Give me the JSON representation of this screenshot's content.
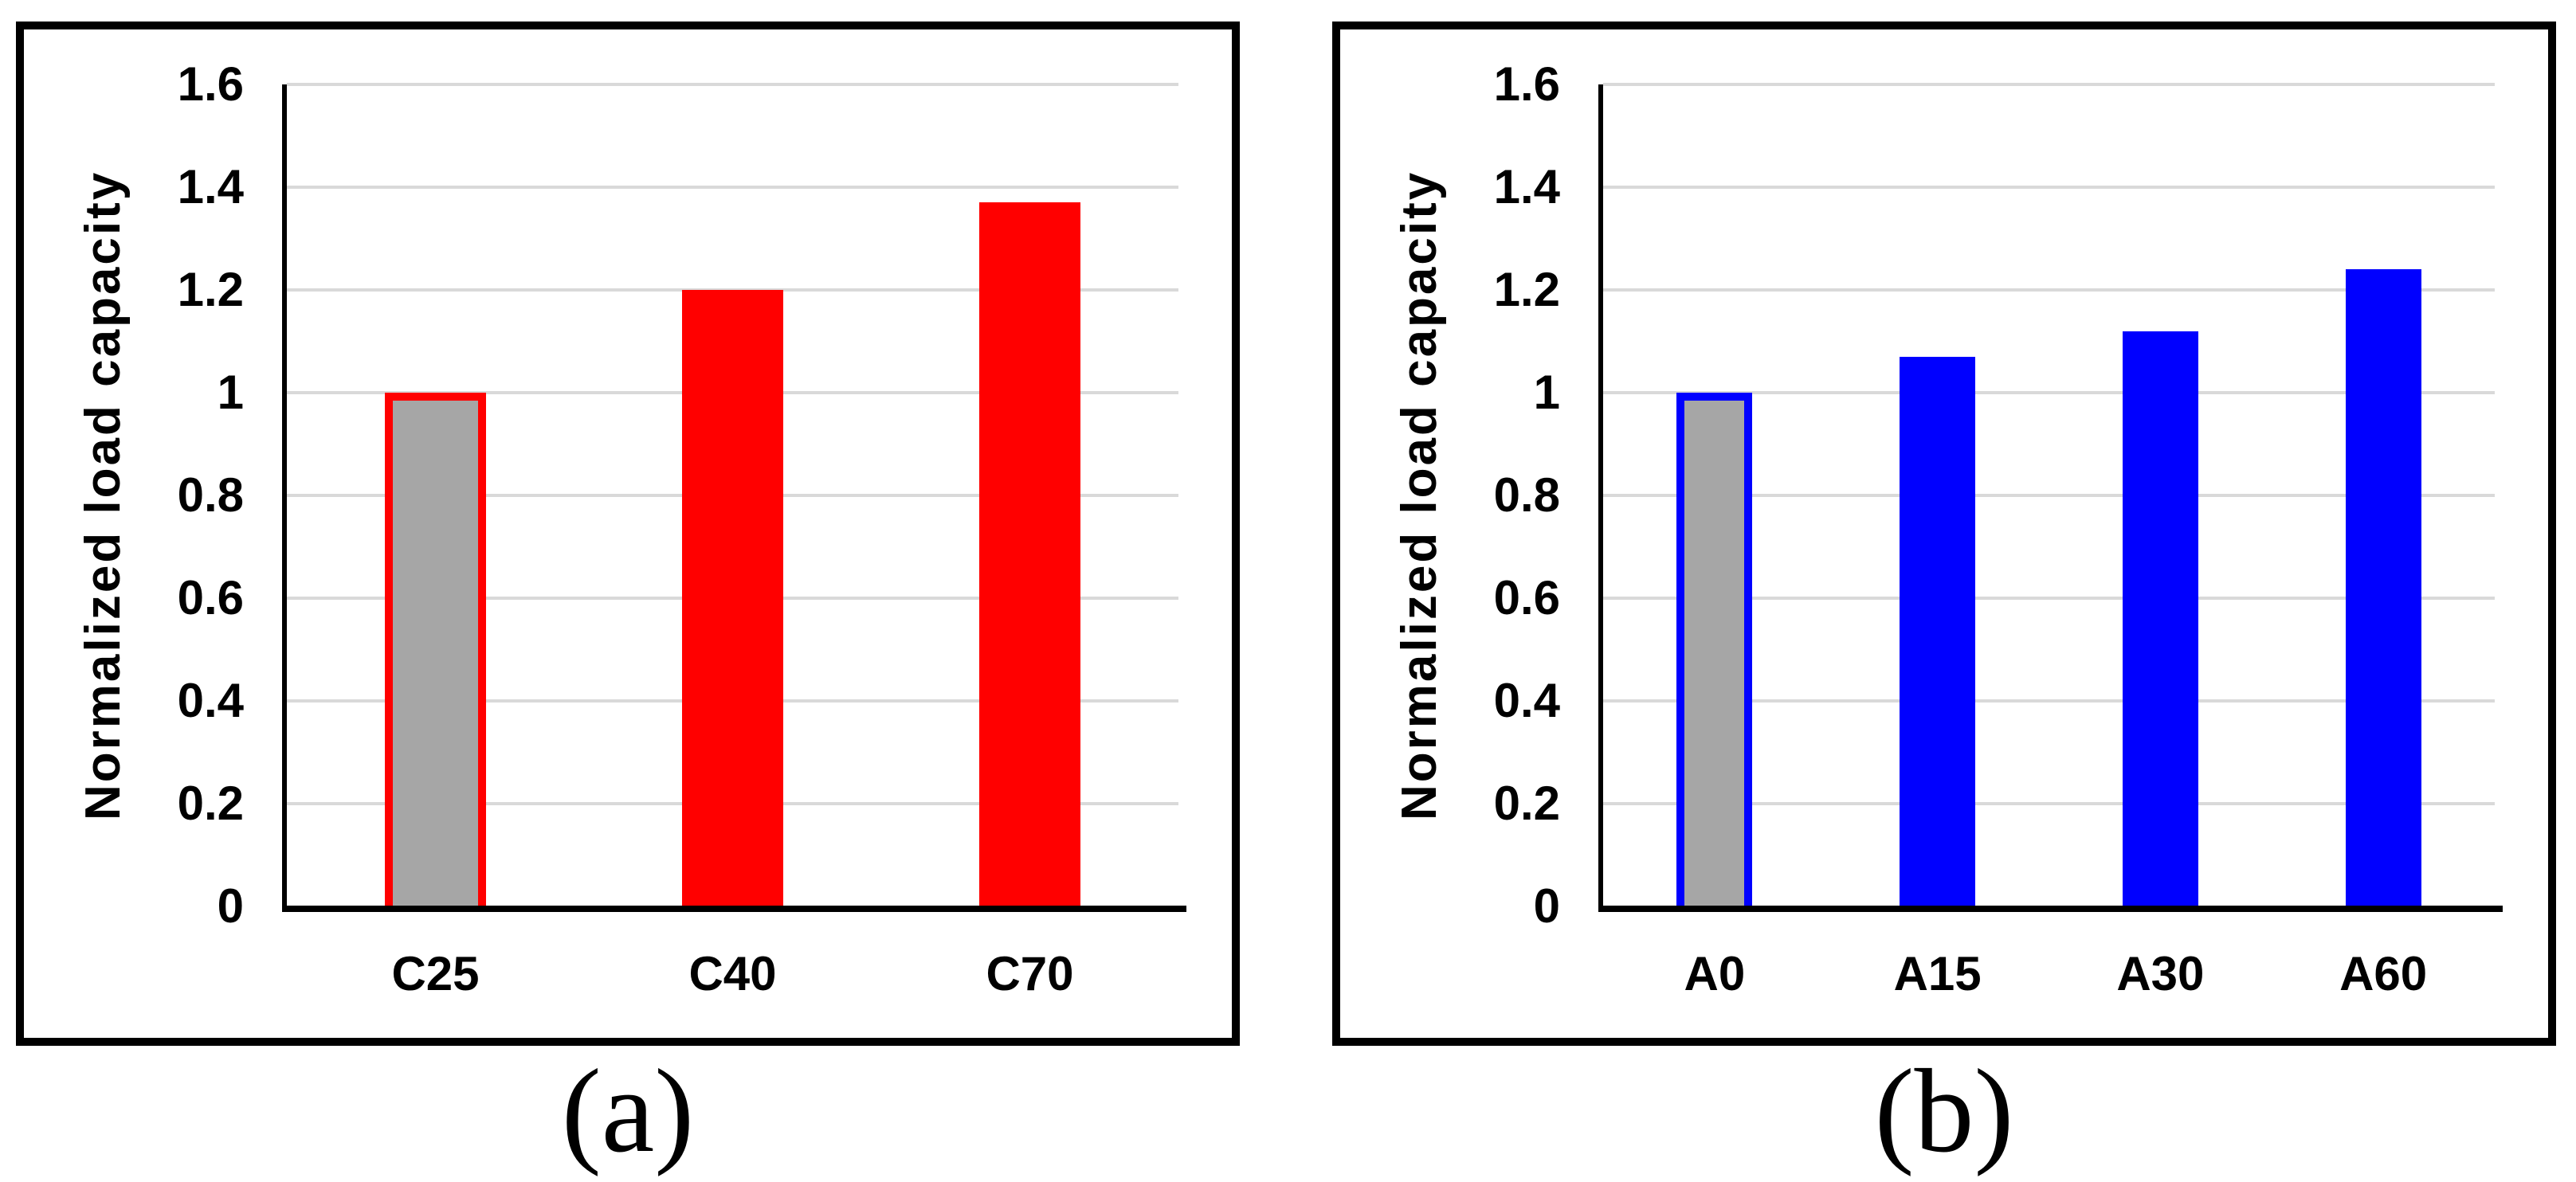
{
  "chart_data": [
    {
      "type": "bar",
      "caption": "(a)",
      "ylabel": "Normalized load capacity",
      "ylim": [
        0,
        1.6
      ],
      "ytick_labels": [
        "1.6",
        "1.4",
        "1.2",
        "1",
        "0.8",
        "0.6",
        "0.4",
        "0.2",
        "0"
      ],
      "grid": true,
      "legend": "none",
      "categories": [
        "C25",
        "C40",
        "C70"
      ],
      "values": [
        1.0,
        1.2,
        1.37
      ],
      "series_color": "#FF0000",
      "bar_fill_colors": [
        "#A6A6A6",
        "#FF0000",
        "#FF0000"
      ],
      "bar_outline_colors": [
        "#FF0000",
        null,
        null
      ],
      "gridline_color": "#D9D9D9",
      "axis_color": "#000000",
      "frame_color": "#000000"
    },
    {
      "type": "bar",
      "caption": "(b)",
      "ylabel": "Normalized load capacity",
      "ylim": [
        0,
        1.6
      ],
      "ytick_labels": [
        "1.6",
        "1.4",
        "1.2",
        "1",
        "0.8",
        "0.6",
        "0.4",
        "0.2",
        "0"
      ],
      "grid": true,
      "legend": "none",
      "categories": [
        "A0",
        "A15",
        "A30",
        "A60"
      ],
      "values": [
        1.0,
        1.07,
        1.12,
        1.24
      ],
      "series_color": "#0000FF",
      "bar_fill_colors": [
        "#A6A6A6",
        "#0000FF",
        "#0000FF",
        "#0000FF"
      ],
      "bar_outline_colors": [
        "#0000FF",
        null,
        null,
        null
      ],
      "gridline_color": "#D9D9D9",
      "axis_color": "#000000",
      "frame_color": "#000000"
    }
  ]
}
